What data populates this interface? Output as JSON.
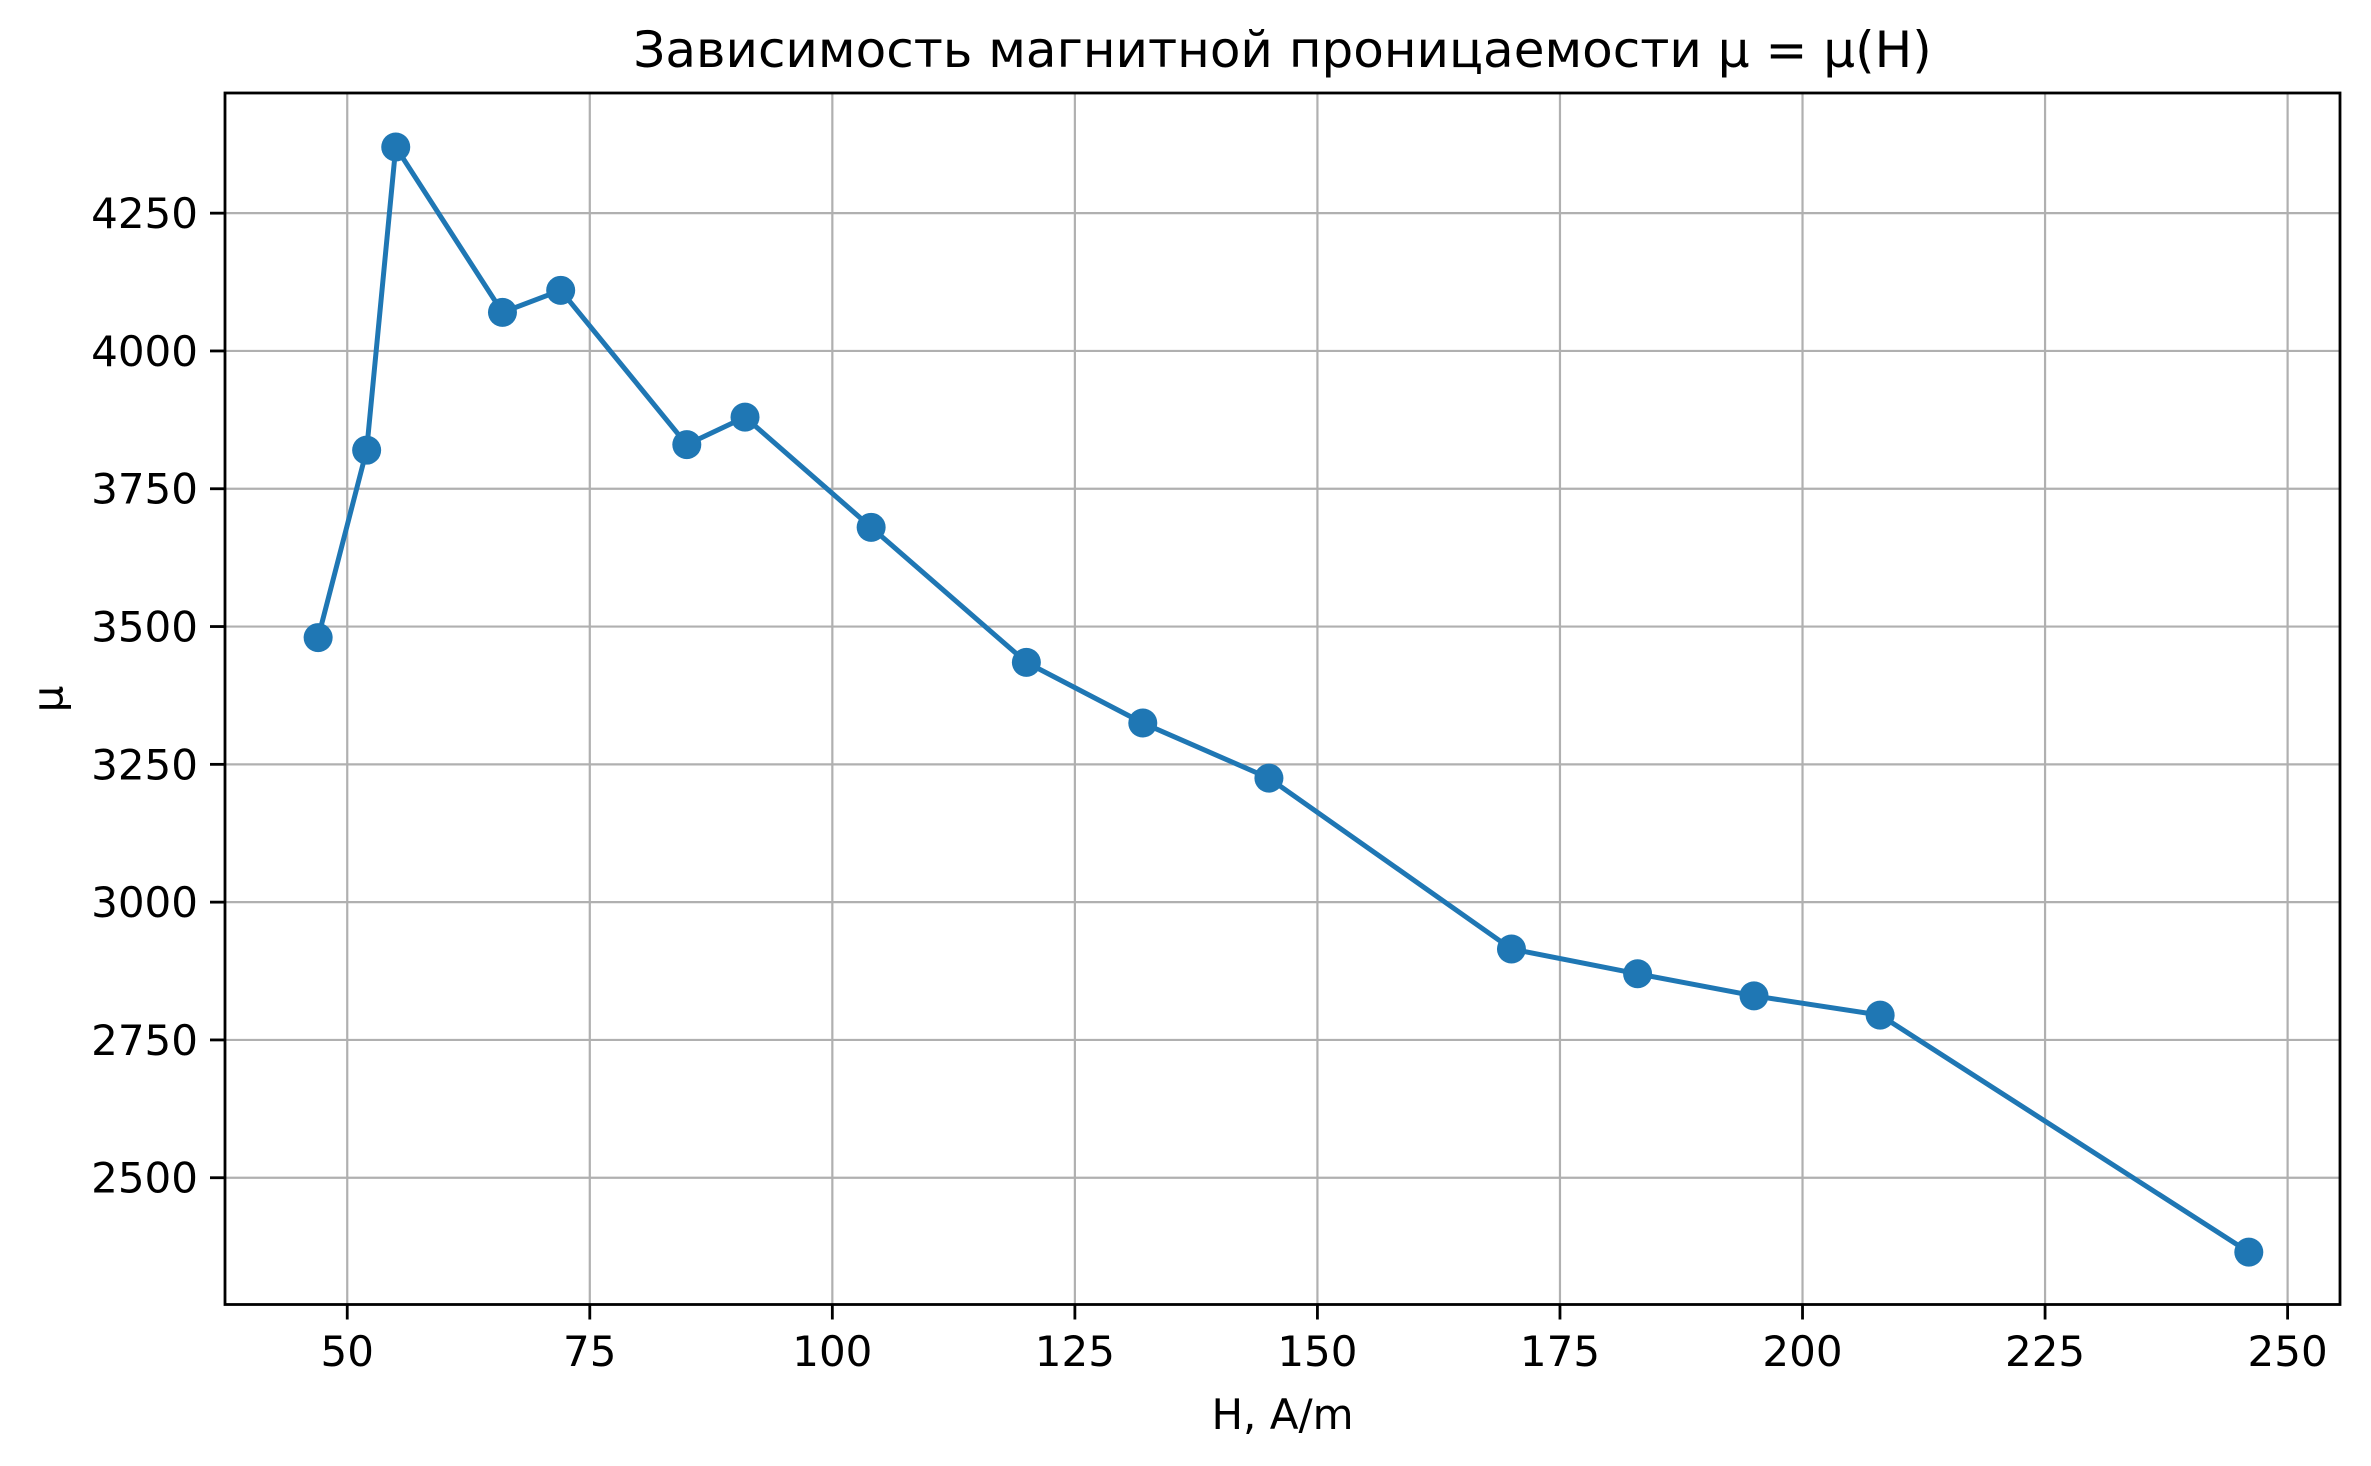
{
  "chart_data": {
    "type": "line",
    "title": "Зависимость магнитной проницаемости μ = μ(H)",
    "xlabel": "H, A/m",
    "ylabel": "μ",
    "series": [
      {
        "x": [
          47,
          52,
          55,
          66,
          72,
          85,
          91,
          104,
          120,
          132,
          145,
          170,
          183,
          195,
          208,
          246
        ],
        "y": [
          3480,
          3820,
          4370,
          4070,
          4110,
          3830,
          3880,
          3680,
          3435,
          3325,
          3225,
          2915,
          2870,
          2830,
          2795,
          2365
        ]
      }
    ],
    "x_ticks": [
      50,
      75,
      100,
      125,
      150,
      175,
      200,
      225,
      250
    ],
    "y_ticks": [
      2500,
      2750,
      3000,
      3250,
      3500,
      3750,
      4000,
      4250
    ],
    "xlim": [
      37.4,
      255.4
    ],
    "ylim": [
      2270,
      4468
    ],
    "grid": true,
    "legend": "none",
    "line_color": "#1f77b4",
    "marker_color": "#1f77b4",
    "grid_color": "#b0b0b0",
    "spine_color": "#000000",
    "text_color": "#000000",
    "background_color": "#ffffff",
    "marker": "circle"
  }
}
